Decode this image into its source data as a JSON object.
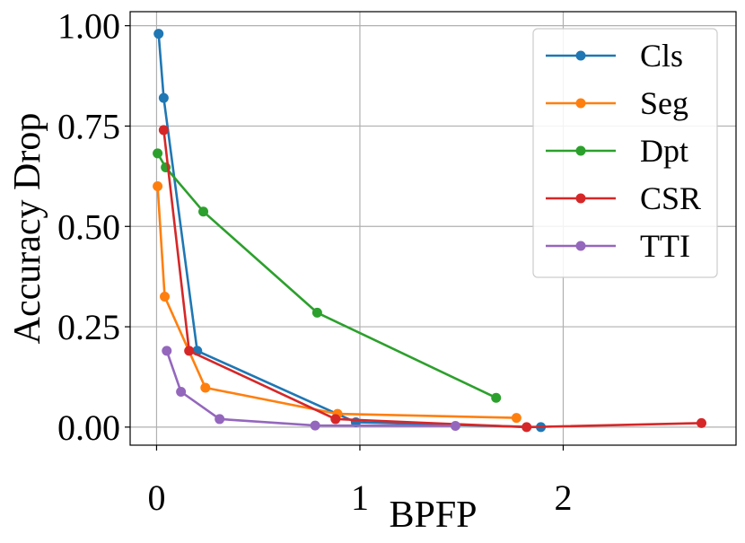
{
  "chart_data": {
    "type": "line",
    "title": "",
    "xlabel": "BPFP",
    "ylabel": "Accuracy Drop",
    "xlim": [
      -0.13,
      2.85
    ],
    "ylim": [
      -0.045,
      1.035
    ],
    "xticks": [
      0,
      1,
      2
    ],
    "xtick_labels": [
      "0",
      "1",
      "2"
    ],
    "yticks": [
      0,
      0.25,
      0.5,
      0.75,
      1.0
    ],
    "ytick_labels": [
      "0.00",
      "0.25",
      "0.50",
      "0.75",
      "1.00"
    ],
    "grid": true,
    "legend_position": "top-right",
    "marker": "circle",
    "series": [
      {
        "name": "Cls",
        "color": "#1f77b4",
        "x": [
          0.01,
          0.035,
          0.2,
          0.98,
          1.89
        ],
        "y": [
          0.98,
          0.82,
          0.19,
          0.012,
          0.0
        ]
      },
      {
        "name": "Seg",
        "color": "#ff7f0e",
        "x": [
          0.005,
          0.04,
          0.24,
          0.89,
          1.77
        ],
        "y": [
          0.6,
          0.325,
          0.098,
          0.033,
          0.023
        ]
      },
      {
        "name": "Dpt",
        "color": "#2ca02c",
        "x": [
          0.005,
          0.045,
          0.23,
          0.79,
          1.67
        ],
        "y": [
          0.682,
          0.647,
          0.537,
          0.285,
          0.073
        ]
      },
      {
        "name": "CSR",
        "color": "#d62728",
        "x": [
          0.035,
          0.16,
          0.88,
          1.82,
          2.68
        ],
        "y": [
          0.74,
          0.19,
          0.02,
          0.0,
          0.01
        ]
      },
      {
        "name": "TTI",
        "color": "#9467bd",
        "x": [
          0.05,
          0.12,
          0.31,
          0.78,
          1.47
        ],
        "y": [
          0.19,
          0.088,
          0.02,
          0.004,
          0.003
        ]
      }
    ]
  }
}
